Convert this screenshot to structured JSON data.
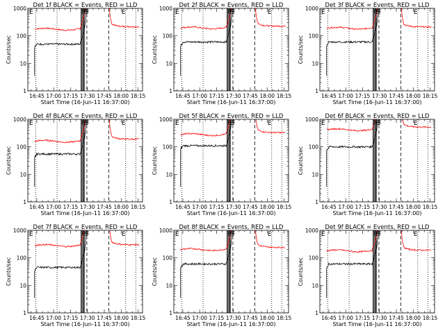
{
  "chart_data": [
    {
      "type": "line",
      "title": "Det 1f BLACK = Events, RED = LLD",
      "xlabel": "Start Time (16-Jun-11 16:37:00)",
      "ylabel": "Counts/sec",
      "yscale": "log",
      "xlim": [
        "16:37",
        "18:19"
      ],
      "ylim": [
        1,
        1000
      ],
      "xticks": [
        "16:45",
        "17:00",
        "17:15",
        "17:30",
        "17:45",
        "18:00",
        "18:15"
      ],
      "yticks": [
        "1",
        "10",
        "100",
        "1000"
      ],
      "grid": false,
      "annotations": {
        "E_left": "E",
        "flags_left": "F",
        "flags_s": "S",
        "E_right": "E"
      },
      "black_level": 50,
      "red_level": 175,
      "red_post_level": 215,
      "series": [
        {
          "name": "BLACK = Events",
          "color": "#000000"
        },
        {
          "name": "RED = LLD",
          "color": "#ff0000"
        }
      ]
    },
    {
      "type": "line",
      "title": "Det 2f BLACK = Events, RED = LLD",
      "xlabel": "Start Time (16-Jun-11 16:37:00)",
      "ylabel": "Counts/sec",
      "yscale": "log",
      "xlim": [
        "16:37",
        "18:19"
      ],
      "ylim": [
        1,
        1000
      ],
      "xticks": [
        "16:45",
        "17:00",
        "17:15",
        "17:30",
        "17:45",
        "18:00",
        "18:15"
      ],
      "yticks": [
        "1",
        "10",
        "100",
        "1000"
      ],
      "grid": false,
      "annotations": {
        "E_left": "E",
        "flags_left": "F",
        "flags_s": "S",
        "E_right": "E"
      },
      "black_level": 60,
      "red_level": 195,
      "red_post_level": 225,
      "series": [
        {
          "name": "BLACK = Events",
          "color": "#000000"
        },
        {
          "name": "RED = LLD",
          "color": "#ff0000"
        }
      ]
    },
    {
      "type": "line",
      "title": "Det 3f BLACK = Events, RED = LLD",
      "xlabel": "Start Time (16-Jun-11 16:37:00)",
      "ylabel": "Counts/sec",
      "yscale": "log",
      "xlim": [
        "16:37",
        "18:19"
      ],
      "ylim": [
        1,
        1000
      ],
      "xticks": [
        "16:45",
        "17:00",
        "17:15",
        "17:30",
        "17:45",
        "18:00",
        "18:15"
      ],
      "yticks": [
        "1",
        "10",
        "100",
        "1000"
      ],
      "grid": false,
      "annotations": {
        "E_left": "E",
        "flags_left": "F",
        "flags_s": "S",
        "E_right": "E"
      },
      "black_level": 60,
      "red_level": 190,
      "red_post_level": 210,
      "series": [
        {
          "name": "BLACK = Events",
          "color": "#000000"
        },
        {
          "name": "RED = LLD",
          "color": "#ff0000"
        }
      ]
    },
    {
      "type": "line",
      "title": "Det 4f BLACK = Events, RED = LLD",
      "xlabel": "Start Time (16-Jun-11 16:37:00)",
      "ylabel": "Counts/sec",
      "yscale": "log",
      "xlim": [
        "16:37",
        "18:19"
      ],
      "ylim": [
        1,
        1000
      ],
      "xticks": [
        "16:45",
        "17:00",
        "17:15",
        "17:30",
        "17:45",
        "18:00",
        "18:15"
      ],
      "yticks": [
        "1",
        "10",
        "100",
        "1000"
      ],
      "grid": false,
      "annotations": {
        "E_left": "E",
        "flags_left": "F",
        "flags_s": "S",
        "E_right": "E"
      },
      "black_level": 55,
      "red_level": 160,
      "red_post_level": 190,
      "series": [
        {
          "name": "BLACK = Events",
          "color": "#000000"
        },
        {
          "name": "RED = LLD",
          "color": "#ff0000"
        }
      ]
    },
    {
      "type": "line",
      "title": "Det 5f BLACK = Events, RED = LLD",
      "xlabel": "Start Time (16-Jun-11 16:37:00)",
      "ylabel": "Counts/sec",
      "yscale": "log",
      "xlim": [
        "16:37",
        "18:19"
      ],
      "ylim": [
        1,
        1000
      ],
      "xticks": [
        "16:45",
        "17:00",
        "17:15",
        "17:30",
        "17:45",
        "18:00",
        "18:15"
      ],
      "yticks": [
        "1",
        "10",
        "100",
        "1000"
      ],
      "grid": false,
      "annotations": {
        "E_left": "E",
        "flags_left": "F",
        "flags_s": "S",
        "E_right": "E"
      },
      "black_level": 110,
      "red_level": 280,
      "red_post_level": 330,
      "series": [
        {
          "name": "BLACK = Events",
          "color": "#000000"
        },
        {
          "name": "RED = LLD",
          "color": "#ff0000"
        }
      ]
    },
    {
      "type": "line",
      "title": "Det 6f BLACK = Events, RED = LLD",
      "xlabel": "Start Time (16-Jun-11 16:37:00)",
      "ylabel": "Counts/sec",
      "yscale": "log",
      "xlim": [
        "16:37",
        "18:19"
      ],
      "ylim": [
        1,
        1000
      ],
      "xticks": [
        "16:45",
        "17:00",
        "17:15",
        "17:30",
        "17:45",
        "18:00",
        "18:15"
      ],
      "yticks": [
        "1",
        "10",
        "100",
        "1000"
      ],
      "grid": false,
      "annotations": {
        "E_left": "E",
        "flags_left": "F",
        "flags_s": "S",
        "E_right": "E"
      },
      "black_level": 100,
      "red_level": 420,
      "red_post_level": 520,
      "series": [
        {
          "name": "BLACK = Events",
          "color": "#000000"
        },
        {
          "name": "RED = LLD",
          "color": "#ff0000"
        }
      ]
    },
    {
      "type": "line",
      "title": "Det 7f BLACK = Events, RED = LLD",
      "xlabel": "Start Time (16-Jun-11 16:37:00)",
      "ylabel": "Counts/sec",
      "yscale": "log",
      "xlim": [
        "16:37",
        "18:19"
      ],
      "ylim": [
        1,
        1000
      ],
      "xticks": [
        "16:45",
        "17:00",
        "17:15",
        "17:30",
        "17:45",
        "18:00",
        "18:15"
      ],
      "yticks": [
        "1",
        "10",
        "100",
        "1000"
      ],
      "grid": false,
      "annotations": {
        "E_left": "E",
        "flags_left": "F",
        "flags_s": "S",
        "E_right": "E"
      },
      "black_level": 45,
      "red_level": 280,
      "red_post_level": 300,
      "series": [
        {
          "name": "BLACK = Events",
          "color": "#000000"
        },
        {
          "name": "RED = LLD",
          "color": "#ff0000"
        }
      ]
    },
    {
      "type": "line",
      "title": "Det 8f BLACK = Events, RED = LLD",
      "xlabel": "Start Time (16-Jun-11 16:37:00)",
      "ylabel": "Counts/sec",
      "yscale": "log",
      "xlim": [
        "16:37",
        "18:19"
      ],
      "ylim": [
        1,
        1000
      ],
      "xticks": [
        "16:45",
        "17:00",
        "17:15",
        "17:30",
        "17:45",
        "18:00",
        "18:15"
      ],
      "yticks": [
        "1",
        "10",
        "100",
        "1000"
      ],
      "grid": false,
      "annotations": {
        "E_left": "E",
        "flags_left": "F",
        "flags_s": "S",
        "E_right": "E"
      },
      "black_level": 60,
      "red_level": 200,
      "red_post_level": 240,
      "series": [
        {
          "name": "BLACK = Events",
          "color": "#000000"
        },
        {
          "name": "RED = LLD",
          "color": "#ff0000"
        }
      ]
    },
    {
      "type": "line",
      "title": "Det 9f BLACK = Events, RED = LLD",
      "xlabel": "Start Time (16-Jun-11 16:37:00)",
      "ylabel": "Counts/sec",
      "yscale": "log",
      "xlim": [
        "16:37",
        "18:19"
      ],
      "ylim": [
        1,
        1000
      ],
      "xticks": [
        "16:45",
        "17:00",
        "17:15",
        "17:30",
        "17:45",
        "18:00",
        "18:15"
      ],
      "yticks": [
        "1",
        "10",
        "100",
        "1000"
      ],
      "grid": false,
      "annotations": {
        "E_left": "E",
        "flags_left": "F",
        "flags_s": "S",
        "E_right": "E"
      },
      "black_level": 60,
      "red_level": 180,
      "red_post_level": 190,
      "series": [
        {
          "name": "BLACK = Events",
          "color": "#000000"
        },
        {
          "name": "RED = LLD",
          "color": "#ff0000"
        }
      ]
    }
  ]
}
